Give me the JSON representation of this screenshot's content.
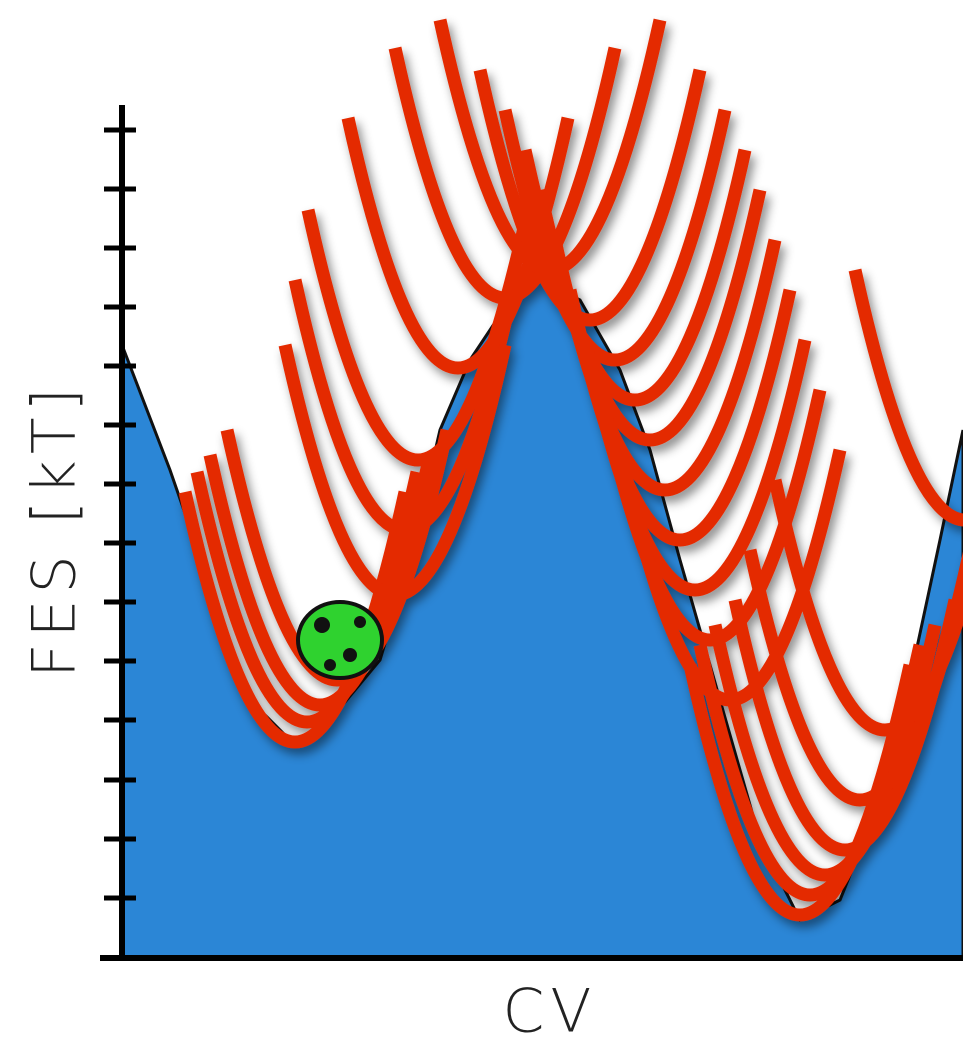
{
  "axes": {
    "y_label": "FES [kT]",
    "x_label": "CV"
  }
}
